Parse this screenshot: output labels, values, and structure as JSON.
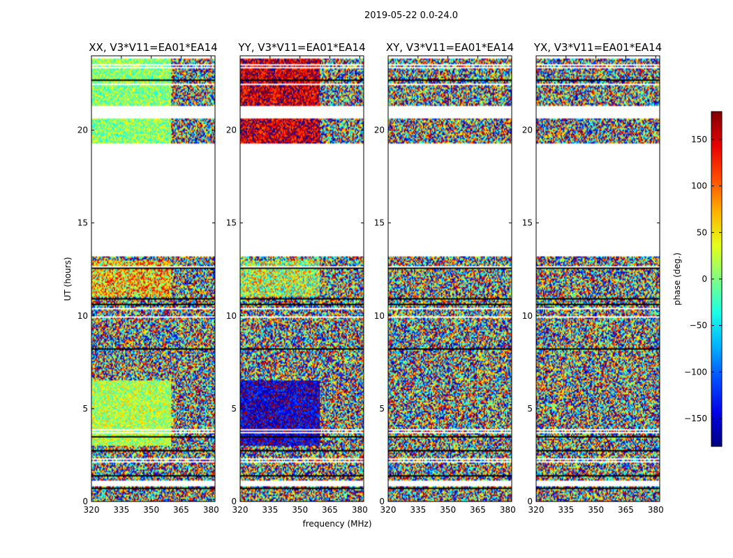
{
  "chart_data": {
    "type": "heatmap",
    "title": "2019-05-22 0.0-24.0",
    "xlabel": "frequency (MHz)",
    "ylabel": "UT (hours)",
    "xlim": [
      320,
      382
    ],
    "ylim": [
      0,
      24
    ],
    "xticks": [
      "320",
      "335",
      "350",
      "365",
      "380"
    ],
    "xtick_values": [
      320,
      335,
      350,
      365,
      380
    ],
    "yticks": [
      "0",
      "5",
      "10",
      "15",
      "20"
    ],
    "ytick_values": [
      0,
      5,
      10,
      15,
      20
    ],
    "colorbar": {
      "label": "phase (deg.)",
      "range": [
        -180,
        180
      ],
      "ticks": [
        "150",
        "100",
        "50",
        "0",
        "−50",
        "−100",
        "−150"
      ],
      "tick_values": [
        150,
        100,
        50,
        0,
        -50,
        -100,
        -150
      ],
      "colormap": "jet"
    },
    "panels": [
      {
        "name": "XX",
        "title": "XX, V3*V11=EA01*EA14",
        "mode": "coherent",
        "base_low": 20,
        "base_mid": 60,
        "base_high": 5
      },
      {
        "name": "YY",
        "title": "YY, V3*V11=EA01*EA14",
        "mode": "coherent",
        "base_low": -150,
        "base_mid": 20,
        "base_high": 150
      },
      {
        "name": "XY",
        "title": "XY, V3*V11=EA01*EA14",
        "mode": "noise"
      },
      {
        "name": "YX",
        "title": "YX, V3*V11=EA01*EA14",
        "mode": "noise"
      }
    ],
    "data_gaps_hours": [
      [
        13.2,
        19.3
      ],
      [
        20.6,
        21.3
      ],
      [
        0.8,
        1.1
      ]
    ],
    "colors": {
      "flagged": "#ffffff",
      "frame": "#000000"
    }
  }
}
